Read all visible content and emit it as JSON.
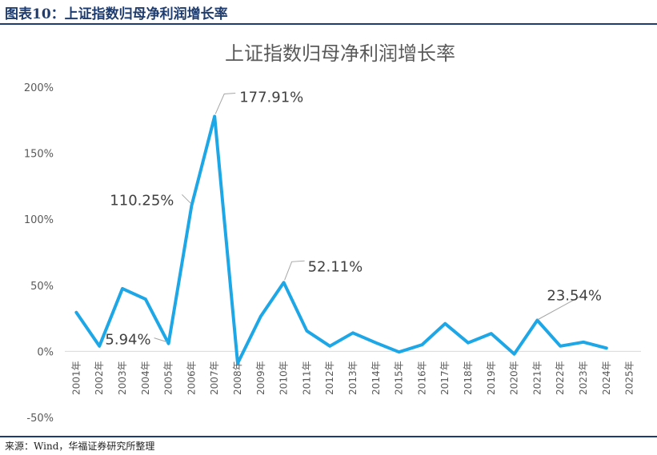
{
  "header": {
    "figure_title": "图表10：上证指数归母净利润增长率"
  },
  "footer": {
    "source": "来源：Wind，华福证券研究所整理"
  },
  "chart_data": {
    "type": "line",
    "title": "上证指数归母净利润增长率",
    "xlabel": "",
    "ylabel": "",
    "ylim": [
      -50,
      200
    ],
    "yticks": [
      -50,
      0,
      50,
      100,
      150,
      200
    ],
    "ytick_labels": [
      "-50%",
      "0%",
      "50%",
      "100%",
      "150%",
      "200%"
    ],
    "grid": false,
    "legend": "none",
    "line_color": "#1ea7e6",
    "categories": [
      "2001年",
      "2002年",
      "2003年",
      "2004年",
      "2005年",
      "2006年",
      "2007年",
      "2008年",
      "2009年",
      "2010年",
      "2011年",
      "2012年",
      "2013年",
      "2014年",
      "2015年",
      "2016年",
      "2017年",
      "2018年",
      "2019年",
      "2020年",
      "2021年",
      "2022年",
      "2023年",
      "2024年",
      "2025年"
    ],
    "series": [
      {
        "values": [
          29.5,
          4.0,
          47.5,
          39.5,
          5.94,
          110.25,
          177.91,
          -9.0,
          26.5,
          52.11,
          15.5,
          4.0,
          14.0,
          6.5,
          -0.5,
          5.0,
          21.0,
          6.5,
          13.5,
          -2.0,
          23.54,
          4.0,
          7.0,
          2.5,
          null
        ]
      }
    ],
    "data_labels": [
      {
        "index": 4,
        "text": "5.94%"
      },
      {
        "index": 5,
        "text": "110.25%"
      },
      {
        "index": 6,
        "text": "177.91%"
      },
      {
        "index": 9,
        "text": "52.11%"
      },
      {
        "index": 20,
        "text": "23.54%"
      }
    ]
  }
}
